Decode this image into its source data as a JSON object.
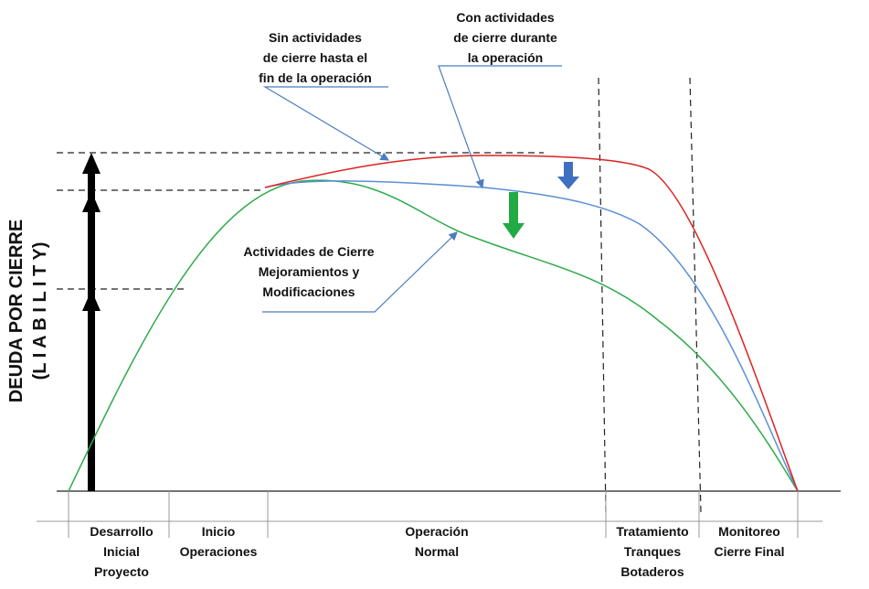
{
  "y_axis": {
    "label": "DEUDA POR CIERRE",
    "sublabel": "(L I A B I L I T Y)"
  },
  "annotations": [
    {
      "lines": [
        "Sin actividades",
        "de cierre hasta el",
        "fin de la operación"
      ]
    },
    {
      "lines": [
        "Con actividades",
        "de cierre durante",
        "la  operación"
      ]
    },
    {
      "lines": [
        "Actividades de Cierre",
        "Mejoramientos  y",
        "Modificaciones"
      ]
    }
  ],
  "phases": [
    {
      "lines": [
        "Desarrollo",
        "Inicial",
        "Proyecto"
      ]
    },
    {
      "lines": [
        "Inicio",
        "Operaciones"
      ]
    },
    {
      "lines": [
        "Operación",
        "Normal"
      ]
    },
    {
      "lines": [
        "Tratamiento",
        "Tranques",
        "Botaderos"
      ]
    },
    {
      "lines": [
        "Monitoreo",
        "Cierre Final"
      ]
    }
  ]
}
